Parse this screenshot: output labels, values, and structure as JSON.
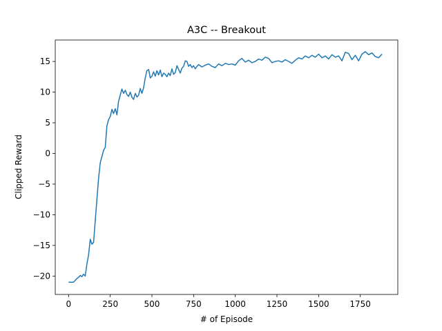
{
  "chart_data": {
    "type": "line",
    "title": "A3C -- Breakout",
    "xlabel": "# of Episode",
    "ylabel": "Clipped Reward",
    "xlim": [
      -80,
      1975
    ],
    "ylim": [
      -23,
      18.5
    ],
    "grid": false,
    "xticks": [
      0,
      250,
      500,
      750,
      1000,
      1250,
      1500,
      1750
    ],
    "yticks": [
      -20,
      -15,
      -10,
      -5,
      0,
      5,
      10,
      15
    ],
    "xtick_labels": [
      "0",
      "250",
      "500",
      "750",
      "1000",
      "1250",
      "1500",
      "1750"
    ],
    "ytick_labels": [
      "−20",
      "−15",
      "−10",
      "−5",
      "0",
      "5",
      "10",
      "15"
    ],
    "series": [
      {
        "color": "#1f77b4",
        "x": [
          0,
          30,
          50,
          60,
          70,
          80,
          90,
          100,
          110,
          120,
          130,
          140,
          150,
          160,
          170,
          180,
          190,
          200,
          210,
          220,
          230,
          240,
          250,
          260,
          270,
          280,
          290,
          300,
          310,
          320,
          330,
          340,
          350,
          360,
          370,
          380,
          390,
          400,
          410,
          420,
          430,
          440,
          450,
          460,
          470,
          480,
          490,
          500,
          510,
          520,
          530,
          540,
          550,
          560,
          570,
          580,
          590,
          600,
          610,
          620,
          630,
          640,
          650,
          660,
          670,
          680,
          690,
          700,
          710,
          720,
          730,
          740,
          750,
          760,
          770,
          780,
          800,
          820,
          840,
          860,
          880,
          900,
          920,
          940,
          960,
          980,
          1000,
          1020,
          1040,
          1060,
          1080,
          1100,
          1120,
          1140,
          1160,
          1180,
          1200,
          1220,
          1240,
          1260,
          1280,
          1300,
          1320,
          1340,
          1360,
          1380,
          1400,
          1420,
          1440,
          1460,
          1480,
          1500,
          1520,
          1540,
          1560,
          1580,
          1600,
          1620,
          1640,
          1660,
          1680,
          1700,
          1720,
          1740,
          1760,
          1780,
          1800,
          1820,
          1840,
          1860,
          1880
        ],
        "y": [
          -21,
          -21,
          -20.4,
          -20.2,
          -19.9,
          -20.1,
          -19.7,
          -20.0,
          -18.0,
          -16.5,
          -14.0,
          -14.8,
          -14.5,
          -11.0,
          -7.5,
          -4.0,
          -1.5,
          -0.5,
          0.5,
          1.0,
          4.5,
          5.5,
          6.0,
          7.2,
          6.5,
          7.3,
          6.3,
          8.5,
          9.5,
          10.5,
          9.8,
          10.3,
          9.6,
          9.3,
          10.0,
          9.2,
          8.8,
          9.8,
          9.2,
          9.5,
          10.6,
          9.8,
          10.7,
          12.3,
          13.5,
          13.7,
          12.3,
          12.6,
          13.3,
          12.6,
          13.5,
          12.8,
          13.6,
          12.5,
          13.1,
          12.9,
          12.5,
          13.1,
          12.7,
          13.8,
          12.9,
          13.2,
          14.3,
          13.7,
          13.1,
          13.9,
          14.2,
          15.1,
          15.0,
          14.2,
          14.5,
          14.0,
          14.3,
          13.8,
          14.2,
          14.5,
          14.1,
          14.4,
          14.6,
          14.2,
          14.0,
          14.6,
          14.3,
          14.7,
          14.5,
          14.6,
          14.4,
          15.1,
          15.5,
          14.9,
          15.2,
          14.8,
          15.0,
          15.4,
          15.2,
          15.7,
          15.5,
          14.8,
          15.0,
          15.1,
          14.9,
          15.3,
          15.0,
          14.7,
          15.2,
          15.6,
          15.4,
          15.9,
          15.6,
          16.0,
          15.7,
          16.2,
          15.6,
          15.9,
          15.4,
          16.1,
          15.7,
          15.9,
          15.1,
          16.5,
          16.3,
          15.3,
          16.0,
          15.1,
          16.2,
          16.6,
          16.1,
          16.4,
          15.8,
          15.6,
          16.2
        ]
      }
    ]
  }
}
